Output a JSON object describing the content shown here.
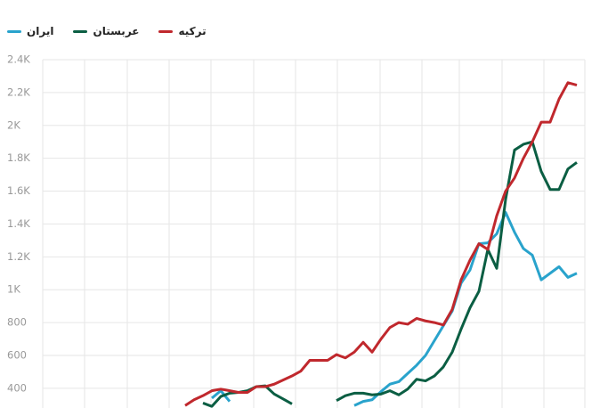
{
  "chart_data": {
    "type": "line",
    "categories": [
      null,
      null,
      null,
      null,
      null,
      null,
      null,
      null,
      null,
      null,
      null,
      null,
      null,
      null,
      null,
      null,
      null,
      null,
      null,
      null,
      null,
      null,
      null,
      null,
      null,
      null,
      null,
      null,
      null,
      null,
      null,
      null,
      null,
      null,
      null,
      null,
      null,
      null,
      null,
      null,
      null,
      null,
      null,
      null,
      null,
      null,
      null,
      null,
      null,
      null,
      null,
      null,
      null,
      null,
      null,
      null,
      null,
      null,
      null,
      null,
      null
    ],
    "series": [
      {
        "name": "ایران",
        "color": "#29a3cc",
        "values": [
          null,
          null,
          null,
          null,
          null,
          null,
          null,
          null,
          null,
          null,
          null,
          null,
          null,
          null,
          null,
          null,
          null,
          null,
          null,
          340,
          385,
          320,
          null,
          null,
          null,
          null,
          null,
          null,
          null,
          null,
          null,
          null,
          null,
          null,
          null,
          295,
          320,
          330,
          380,
          425,
          440,
          490,
          540,
          600,
          690,
          780,
          870,
          1040,
          1120,
          1280,
          1285,
          1340,
          1470,
          1350,
          1250,
          1210,
          1060,
          1100,
          1140,
          1075,
          1100
        ]
      },
      {
        "name": "عربستان",
        "color": "#0b5e43",
        "values": [
          null,
          null,
          null,
          null,
          null,
          null,
          null,
          null,
          null,
          null,
          null,
          null,
          null,
          null,
          null,
          null,
          null,
          null,
          310,
          290,
          350,
          370,
          375,
          385,
          410,
          415,
          365,
          335,
          305,
          null,
          null,
          null,
          null,
          325,
          355,
          370,
          370,
          360,
          365,
          385,
          360,
          395,
          455,
          445,
          475,
          530,
          620,
          760,
          890,
          990,
          1245,
          1130,
          1550,
          1850,
          1885,
          1900,
          1720,
          1610,
          1610,
          1735,
          1775
        ]
      },
      {
        "name": "ترکیه",
        "color": "#c0282d",
        "values": [
          null,
          null,
          null,
          null,
          null,
          null,
          null,
          null,
          null,
          null,
          null,
          null,
          null,
          null,
          null,
          null,
          295,
          330,
          355,
          385,
          395,
          385,
          375,
          375,
          410,
          410,
          425,
          450,
          475,
          505,
          570,
          570,
          570,
          605,
          585,
          620,
          680,
          620,
          700,
          770,
          800,
          790,
          825,
          810,
          800,
          785,
          880,
          1060,
          1180,
          1280,
          1245,
          1450,
          1600,
          1680,
          1800,
          1900,
          2020,
          2020,
          2160,
          2260,
          2245
        ]
      }
    ],
    "ylim": [
      280,
      2400
    ],
    "yticks": [
      400,
      600,
      800,
      {
        "value": 1000,
        "label": "1K"
      },
      {
        "value": 1200,
        "label": "1.2K"
      },
      {
        "value": 1400,
        "label": "1.4K"
      },
      {
        "value": 1600,
        "label": "1.6K"
      },
      {
        "value": 1800,
        "label": "1.8K"
      },
      {
        "value": 2000,
        "label": "2K"
      },
      {
        "value": 2200,
        "label": "2.2K"
      },
      {
        "value": 2400,
        "label": "2.4K"
      }
    ],
    "grid": true
  }
}
